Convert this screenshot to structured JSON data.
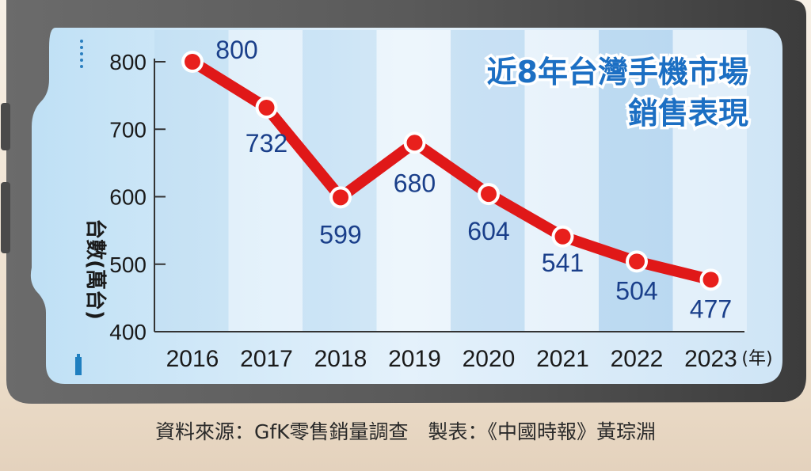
{
  "chart_data": {
    "type": "line",
    "title_lines": [
      "近8年台灣手機市場",
      "銷售表現"
    ],
    "ylabel": "台數(萬台)",
    "xlabel": "(年)",
    "categories": [
      "2016",
      "2017",
      "2018",
      "2019",
      "2020",
      "2021",
      "2022",
      "2023"
    ],
    "values": [
      800,
      732,
      599,
      680,
      604,
      541,
      504,
      477
    ],
    "data_labels": [
      "800",
      "732",
      "599",
      "680",
      "604",
      "541",
      "504",
      "477"
    ],
    "ylim": [
      400,
      800
    ],
    "yticks": [
      "400",
      "500",
      "600",
      "700",
      "800"
    ],
    "grid": false,
    "line_color": "#e01818",
    "marker_color": "#e8201c",
    "label_color": "#1a3f8a"
  },
  "source": "資料來源：GfK零售銷量調查　製表：《中國時報》黃琮淵"
}
